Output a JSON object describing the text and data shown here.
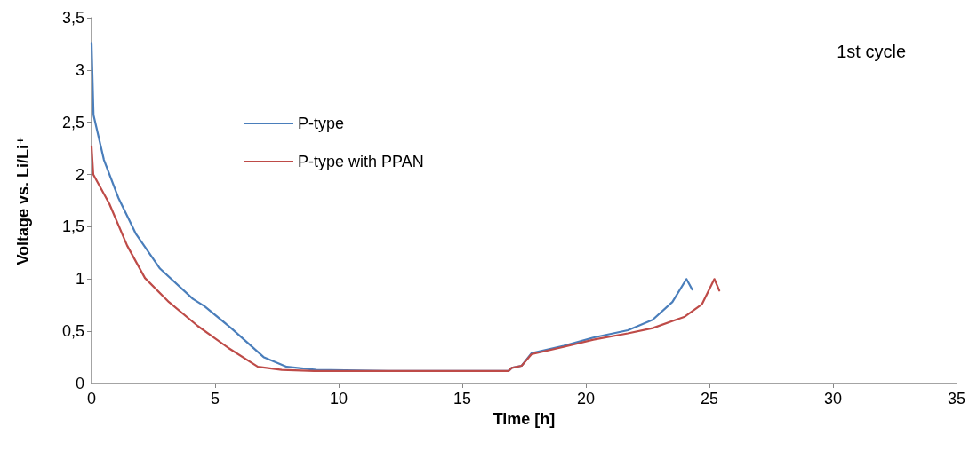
{
  "chart_data": {
    "type": "line",
    "xlabel": "Time [h]",
    "ylabel": "Voltage vs. Li/Li⁺",
    "annotations": [
      "1st cycle"
    ],
    "xlim": [
      0,
      35
    ],
    "xticks": [
      0,
      5,
      10,
      15,
      20,
      25,
      30,
      35
    ],
    "ylim": [
      0,
      3.5
    ],
    "yticks": [
      0,
      {
        "value": 0.5,
        "label": "0,5"
      },
      1,
      {
        "value": 1.5,
        "label": "1,5"
      },
      2,
      {
        "value": 2.5,
        "label": "2,5"
      },
      3,
      {
        "value": 3.5,
        "label": "3,5"
      }
    ],
    "grid": false,
    "legend": "left",
    "marker": "none",
    "line_style": "solid",
    "series": [
      {
        "name": "P-type",
        "color": "#4a7ebb",
        "x": [
          0,
          0.08,
          0.5,
          1.08,
          1.8,
          2.77,
          4.1,
          4.57,
          5.65,
          6.98,
          7.9,
          9.1,
          12,
          16.87,
          17.0,
          17.4,
          17.8,
          19.1,
          20.3,
          21.7,
          22.7,
          23.5,
          24.07,
          24.3
        ],
        "values": [
          3.26,
          2.57,
          2.14,
          1.78,
          1.43,
          1.1,
          0.81,
          0.74,
          0.53,
          0.25,
          0.16,
          0.13,
          0.12,
          0.12,
          0.15,
          0.17,
          0.29,
          0.36,
          0.44,
          0.51,
          0.61,
          0.78,
          1.0,
          0.9
        ]
      },
      {
        "name": "P-type with PPAN",
        "color": "#be4b48",
        "x": [
          0,
          0.07,
          0.72,
          1.44,
          2.16,
          3.13,
          4.3,
          5.54,
          6.73,
          7.7,
          9,
          12,
          16.87,
          17.0,
          17.4,
          17.8,
          19.1,
          20.3,
          21.7,
          22.7,
          24.0,
          24.7,
          25.2,
          25.4
        ],
        "values": [
          2.27,
          2.0,
          1.72,
          1.32,
          1.01,
          0.78,
          0.55,
          0.34,
          0.16,
          0.13,
          0.12,
          0.12,
          0.12,
          0.15,
          0.17,
          0.28,
          0.35,
          0.42,
          0.48,
          0.53,
          0.64,
          0.76,
          1.0,
          0.89
        ]
      }
    ]
  }
}
